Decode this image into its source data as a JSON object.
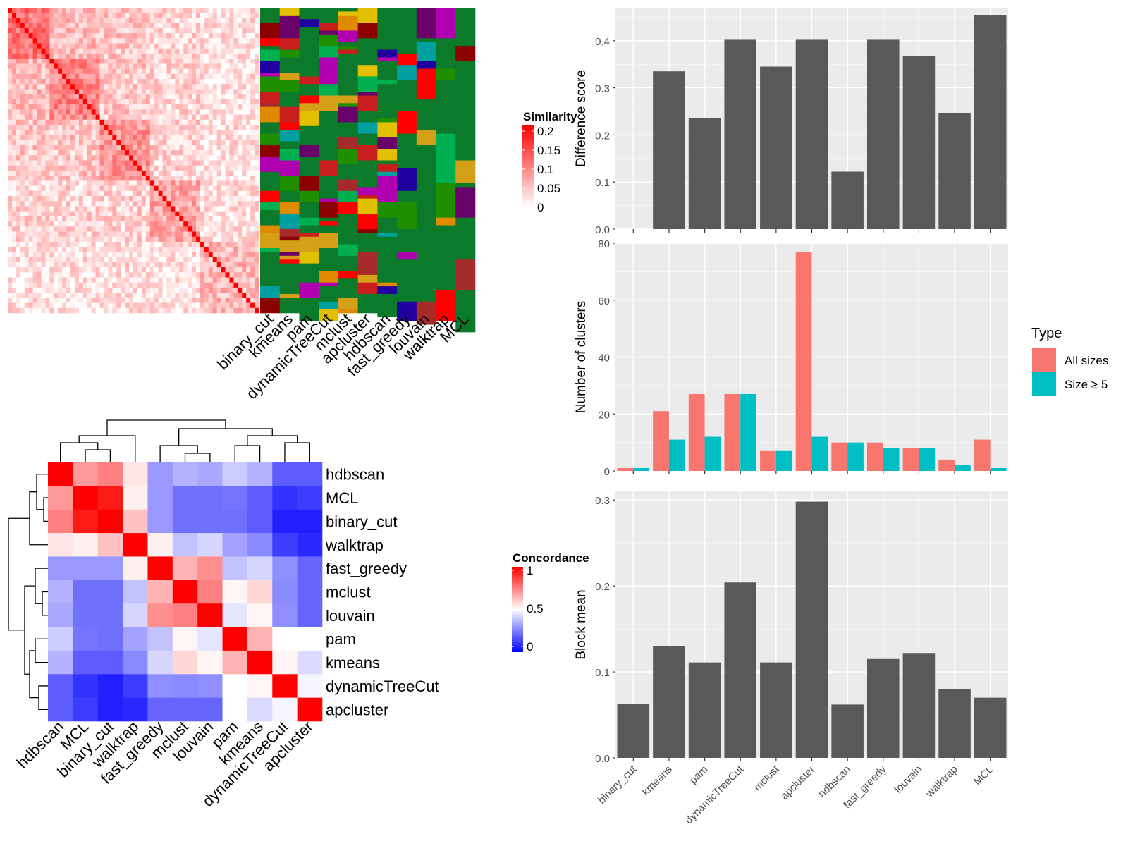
{
  "methods_order": [
    "binary_cut",
    "kmeans",
    "pam",
    "dynamicTreeCut",
    "mclust",
    "apcluster",
    "hdbscan",
    "fast_greedy",
    "louvain",
    "walktrap",
    "MCL"
  ],
  "similarity_heatmap": {
    "legend_title": "Similarity",
    "legend_ticks": [
      "0.2",
      "0.15",
      "0.1",
      "0.05",
      "0"
    ],
    "column_labels": [
      "binary_cut",
      "kmeans",
      "pam",
      "dynamicTreeCut",
      "mclust",
      "apcluster",
      "hdbscan",
      "fast_greedy",
      "louvain",
      "walktrap",
      "MCL"
    ]
  },
  "concordance_heatmap": {
    "legend_title": "Concordance",
    "legend_ticks": [
      "1",
      "0.5",
      "0"
    ],
    "labels": [
      "hdbscan",
      "MCL",
      "binary_cut",
      "walktrap",
      "fast_greedy",
      "mclust",
      "louvain",
      "pam",
      "kmeans",
      "dynamicTreeCut",
      "apcluster"
    ],
    "matrix": [
      [
        1.0,
        0.7,
        0.75,
        0.55,
        0.3,
        0.35,
        0.33,
        0.4,
        0.35,
        0.18,
        0.18
      ],
      [
        0.7,
        1.0,
        0.95,
        0.53,
        0.3,
        0.22,
        0.22,
        0.23,
        0.18,
        0.1,
        0.12
      ],
      [
        0.75,
        0.95,
        1.0,
        0.62,
        0.3,
        0.22,
        0.22,
        0.22,
        0.18,
        0.06,
        0.06
      ],
      [
        0.55,
        0.53,
        0.62,
        1.0,
        0.53,
        0.38,
        0.42,
        0.32,
        0.27,
        0.12,
        0.08
      ],
      [
        0.3,
        0.3,
        0.3,
        0.53,
        1.0,
        0.65,
        0.72,
        0.38,
        0.42,
        0.28,
        0.2
      ],
      [
        0.35,
        0.22,
        0.22,
        0.38,
        0.65,
        1.0,
        0.75,
        0.52,
        0.58,
        0.27,
        0.2
      ],
      [
        0.33,
        0.22,
        0.22,
        0.42,
        0.72,
        0.75,
        1.0,
        0.45,
        0.52,
        0.28,
        0.2
      ],
      [
        0.4,
        0.23,
        0.22,
        0.32,
        0.38,
        0.52,
        0.45,
        1.0,
        0.65,
        0.5,
        0.5
      ],
      [
        0.35,
        0.18,
        0.18,
        0.27,
        0.42,
        0.58,
        0.52,
        0.65,
        1.0,
        0.52,
        0.43
      ],
      [
        0.18,
        0.1,
        0.06,
        0.12,
        0.28,
        0.27,
        0.28,
        0.5,
        0.52,
        1.0,
        0.48
      ],
      [
        0.18,
        0.12,
        0.06,
        0.08,
        0.2,
        0.2,
        0.2,
        0.5,
        0.43,
        0.48,
        1.0
      ]
    ]
  },
  "chart_data": [
    {
      "type": "bar",
      "categories": [
        "binary_cut",
        "kmeans",
        "pam",
        "dynamicTreeCut",
        "mclust",
        "apcluster",
        "hdbscan",
        "fast_greedy",
        "louvain",
        "walktrap",
        "MCL"
      ],
      "values": [
        0.0,
        0.335,
        0.235,
        0.402,
        0.345,
        0.402,
        0.122,
        0.402,
        0.368,
        0.247,
        0.455
      ],
      "ylabel": "Difference score",
      "ylim": [
        0,
        0.47
      ],
      "yticks": [
        "0.0",
        "0.1",
        "0.2",
        "0.3",
        "0.4"
      ],
      "grid": true
    },
    {
      "type": "bar",
      "categories": [
        "binary_cut",
        "kmeans",
        "pam",
        "dynamicTreeCut",
        "mclust",
        "apcluster",
        "hdbscan",
        "fast_greedy",
        "louvain",
        "walktrap",
        "MCL"
      ],
      "series": [
        {
          "name": "All sizes",
          "color": "#F8766D",
          "values": [
            1,
            21,
            27,
            27,
            7,
            77,
            10,
            10,
            8,
            4,
            11
          ]
        },
        {
          "name": "Size ≥ 5",
          "color": "#00BFC4",
          "values": [
            1,
            11,
            12,
            27,
            7,
            12,
            10,
            8,
            8,
            2,
            1
          ]
        }
      ],
      "ylabel": "Number of clusters",
      "ylim": [
        0,
        80
      ],
      "yticks": [
        "0",
        "20",
        "40",
        "60",
        "80"
      ],
      "legend_title": "Type",
      "legend_position": "right",
      "grid": true
    },
    {
      "type": "bar",
      "categories": [
        "binary_cut",
        "kmeans",
        "pam",
        "dynamicTreeCut",
        "mclust",
        "apcluster",
        "hdbscan",
        "fast_greedy",
        "louvain",
        "walktrap",
        "MCL"
      ],
      "values": [
        0.063,
        0.13,
        0.111,
        0.204,
        0.111,
        0.298,
        0.062,
        0.115,
        0.122,
        0.08,
        0.07
      ],
      "ylabel": "Block mean",
      "ylim": [
        0,
        0.31
      ],
      "yticks": [
        "0.0",
        "0.1",
        "0.2",
        "0.3"
      ],
      "grid": true
    }
  ]
}
